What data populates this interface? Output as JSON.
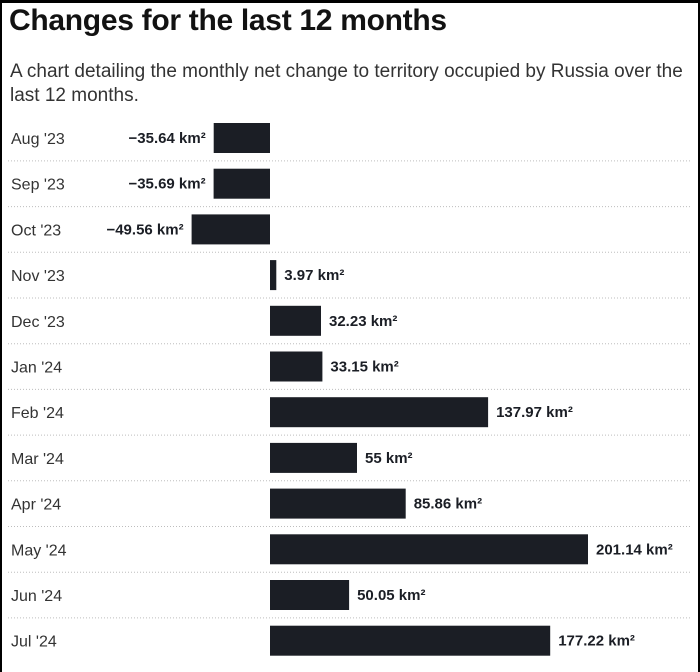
{
  "header": {
    "title": "Changes for the last 12 months",
    "subtitle": "A chart detailing the monthly net change to territory occupied by Russia over the last 12 months."
  },
  "colors": {
    "bar": "#1b1e25",
    "divider": "#bdbdbd"
  },
  "chart_data": {
    "type": "bar",
    "orientation": "horizontal",
    "title": "Changes for the last 12 months",
    "subtitle": "A chart detailing the monthly net change to territory occupied by Russia over the last 12 months.",
    "unit": "km²",
    "categories": [
      "Aug '23",
      "Sep '23",
      "Oct '23",
      "Nov '23",
      "Dec '23",
      "Jan '24",
      "Feb '24",
      "Mar '24",
      "Apr '24",
      "May '24",
      "Jun '24",
      "Jul '24"
    ],
    "values": [
      -35.64,
      -35.69,
      -49.56,
      3.97,
      32.23,
      33.15,
      137.97,
      55,
      85.86,
      201.14,
      50.05,
      177.22
    ],
    "value_labels": [
      "−35.64 km²",
      "−35.69 km²",
      "−49.56 km²",
      "3.97 km²",
      "32.23 km²",
      "33.15 km²",
      "137.97 km²",
      "55 km²",
      "85.86 km²",
      "201.14 km²",
      "50.05 km²",
      "177.22 km²"
    ],
    "xlim": [
      -49.56,
      201.14
    ],
    "grid": false,
    "legend": "none"
  }
}
